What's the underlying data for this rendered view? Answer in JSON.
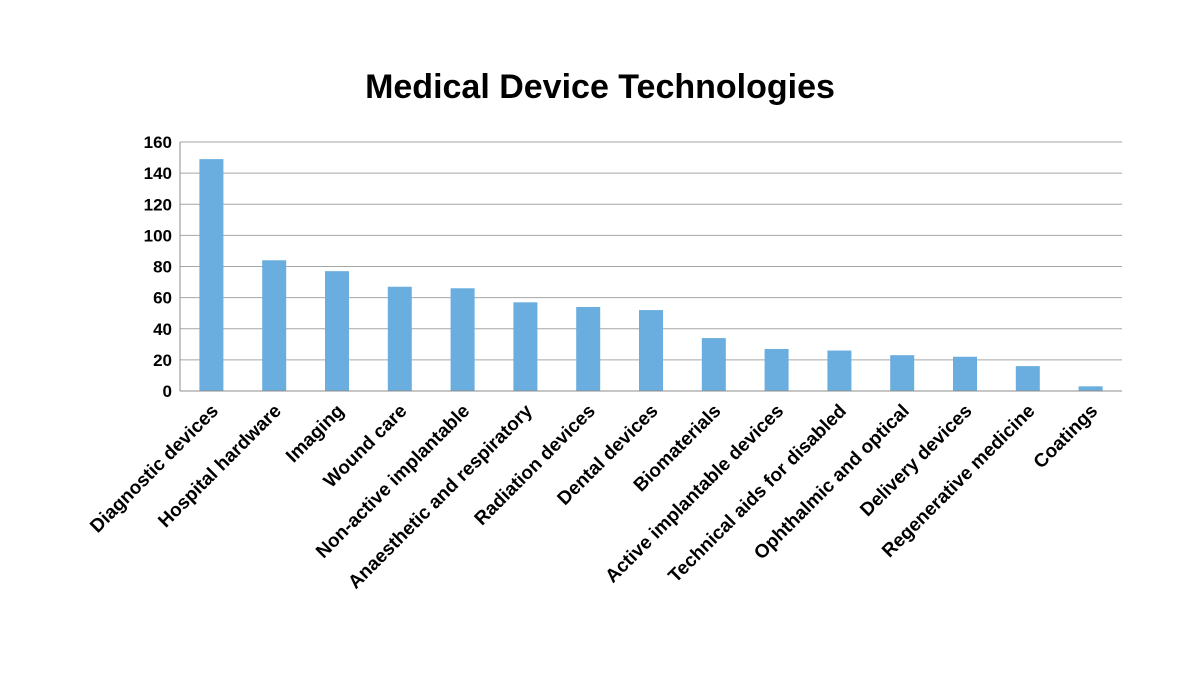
{
  "chart_data": {
    "type": "bar",
    "title": "Medical Device Technologies",
    "xlabel": "",
    "ylabel": "",
    "categories": [
      "Diagnostic devices",
      "Hospital hardware",
      "Imaging",
      "Wound care",
      "Non-active implantable",
      "Anaesthetic and respiratory",
      "Radiation devices",
      "Dental devices",
      "Biomaterials",
      "Active implantable devices",
      "Technical aids for disabled",
      "Ophthalmic and optical",
      "Delivery devices",
      "Regenerative medicine",
      "Coatings"
    ],
    "values": [
      149,
      84,
      77,
      67,
      66,
      57,
      54,
      52,
      34,
      27,
      26,
      23,
      22,
      16,
      3
    ],
    "ylim": [
      0,
      160
    ],
    "yticks": [
      "0",
      "20",
      "40",
      "60",
      "80",
      "100",
      "120",
      "140",
      "160"
    ],
    "grid": true,
    "legend": "none",
    "bar_color": "#6aaee0",
    "grid_color": "#a6a6a6"
  }
}
